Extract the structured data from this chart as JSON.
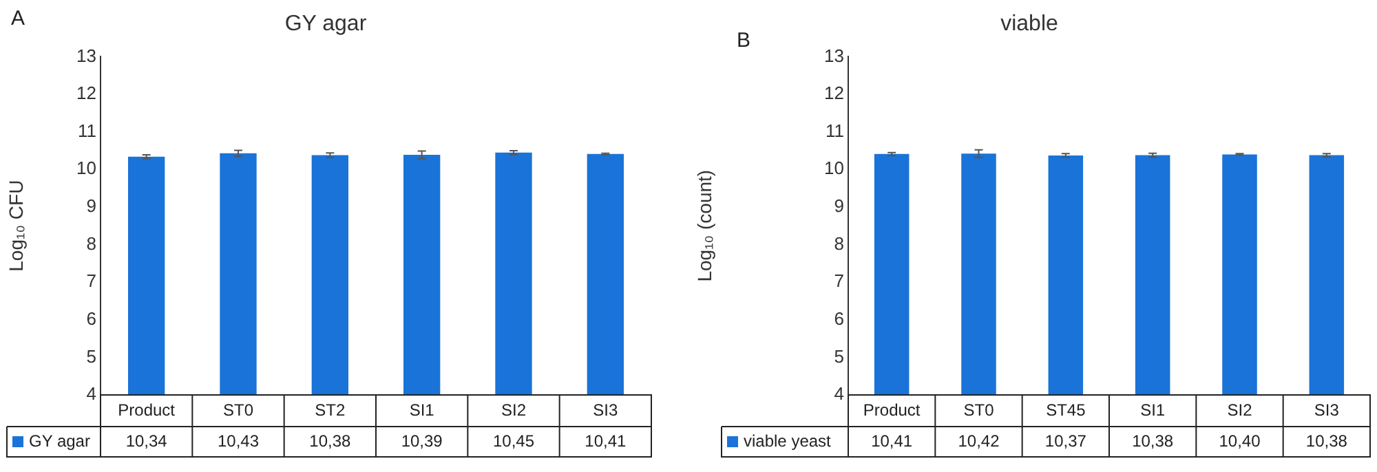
{
  "chart_data": [
    {
      "type": "bar",
      "title": "GY agar",
      "ylabel": "Log₁₀ CFU",
      "annotations": [
        "A"
      ],
      "categories": [
        "Product",
        "ST0",
        "ST2",
        "SI1",
        "SI2",
        "SI3"
      ],
      "ylim": [
        4,
        13
      ],
      "yticks": [
        4,
        5,
        6,
        7,
        8,
        9,
        10,
        11,
        12,
        13
      ],
      "grid": false,
      "legend": "bottom",
      "series": [
        {
          "name": "GY agar",
          "color": "#1a73d8",
          "values": [
            10.34,
            10.43,
            10.38,
            10.39,
            10.45,
            10.41
          ],
          "errors": [
            0.05,
            0.08,
            0.06,
            0.1,
            0.05,
            0.02
          ],
          "value_labels": [
            "10,34",
            "10,43",
            "10,38",
            "10,39",
            "10,45",
            "10,41"
          ]
        }
      ]
    },
    {
      "type": "bar",
      "title": "viable",
      "ylabel": "Log₁₀ (count)",
      "annotations": [
        "B"
      ],
      "categories": [
        "Product",
        "ST0",
        "ST45",
        "SI1",
        "SI2",
        "SI3"
      ],
      "ylim": [
        4,
        13
      ],
      "yticks": [
        4,
        5,
        6,
        7,
        8,
        9,
        10,
        11,
        12,
        13
      ],
      "grid": false,
      "legend": "bottom",
      "series": [
        {
          "name": "viable yeast",
          "color": "#1a73d8",
          "values": [
            10.41,
            10.42,
            10.37,
            10.38,
            10.4,
            10.38
          ],
          "errors": [
            0.04,
            0.1,
            0.05,
            0.05,
            0.02,
            0.04
          ],
          "value_labels": [
            "10,41",
            "10,42",
            "10,37",
            "10,38",
            "10,40",
            "10,38"
          ]
        }
      ]
    }
  ]
}
